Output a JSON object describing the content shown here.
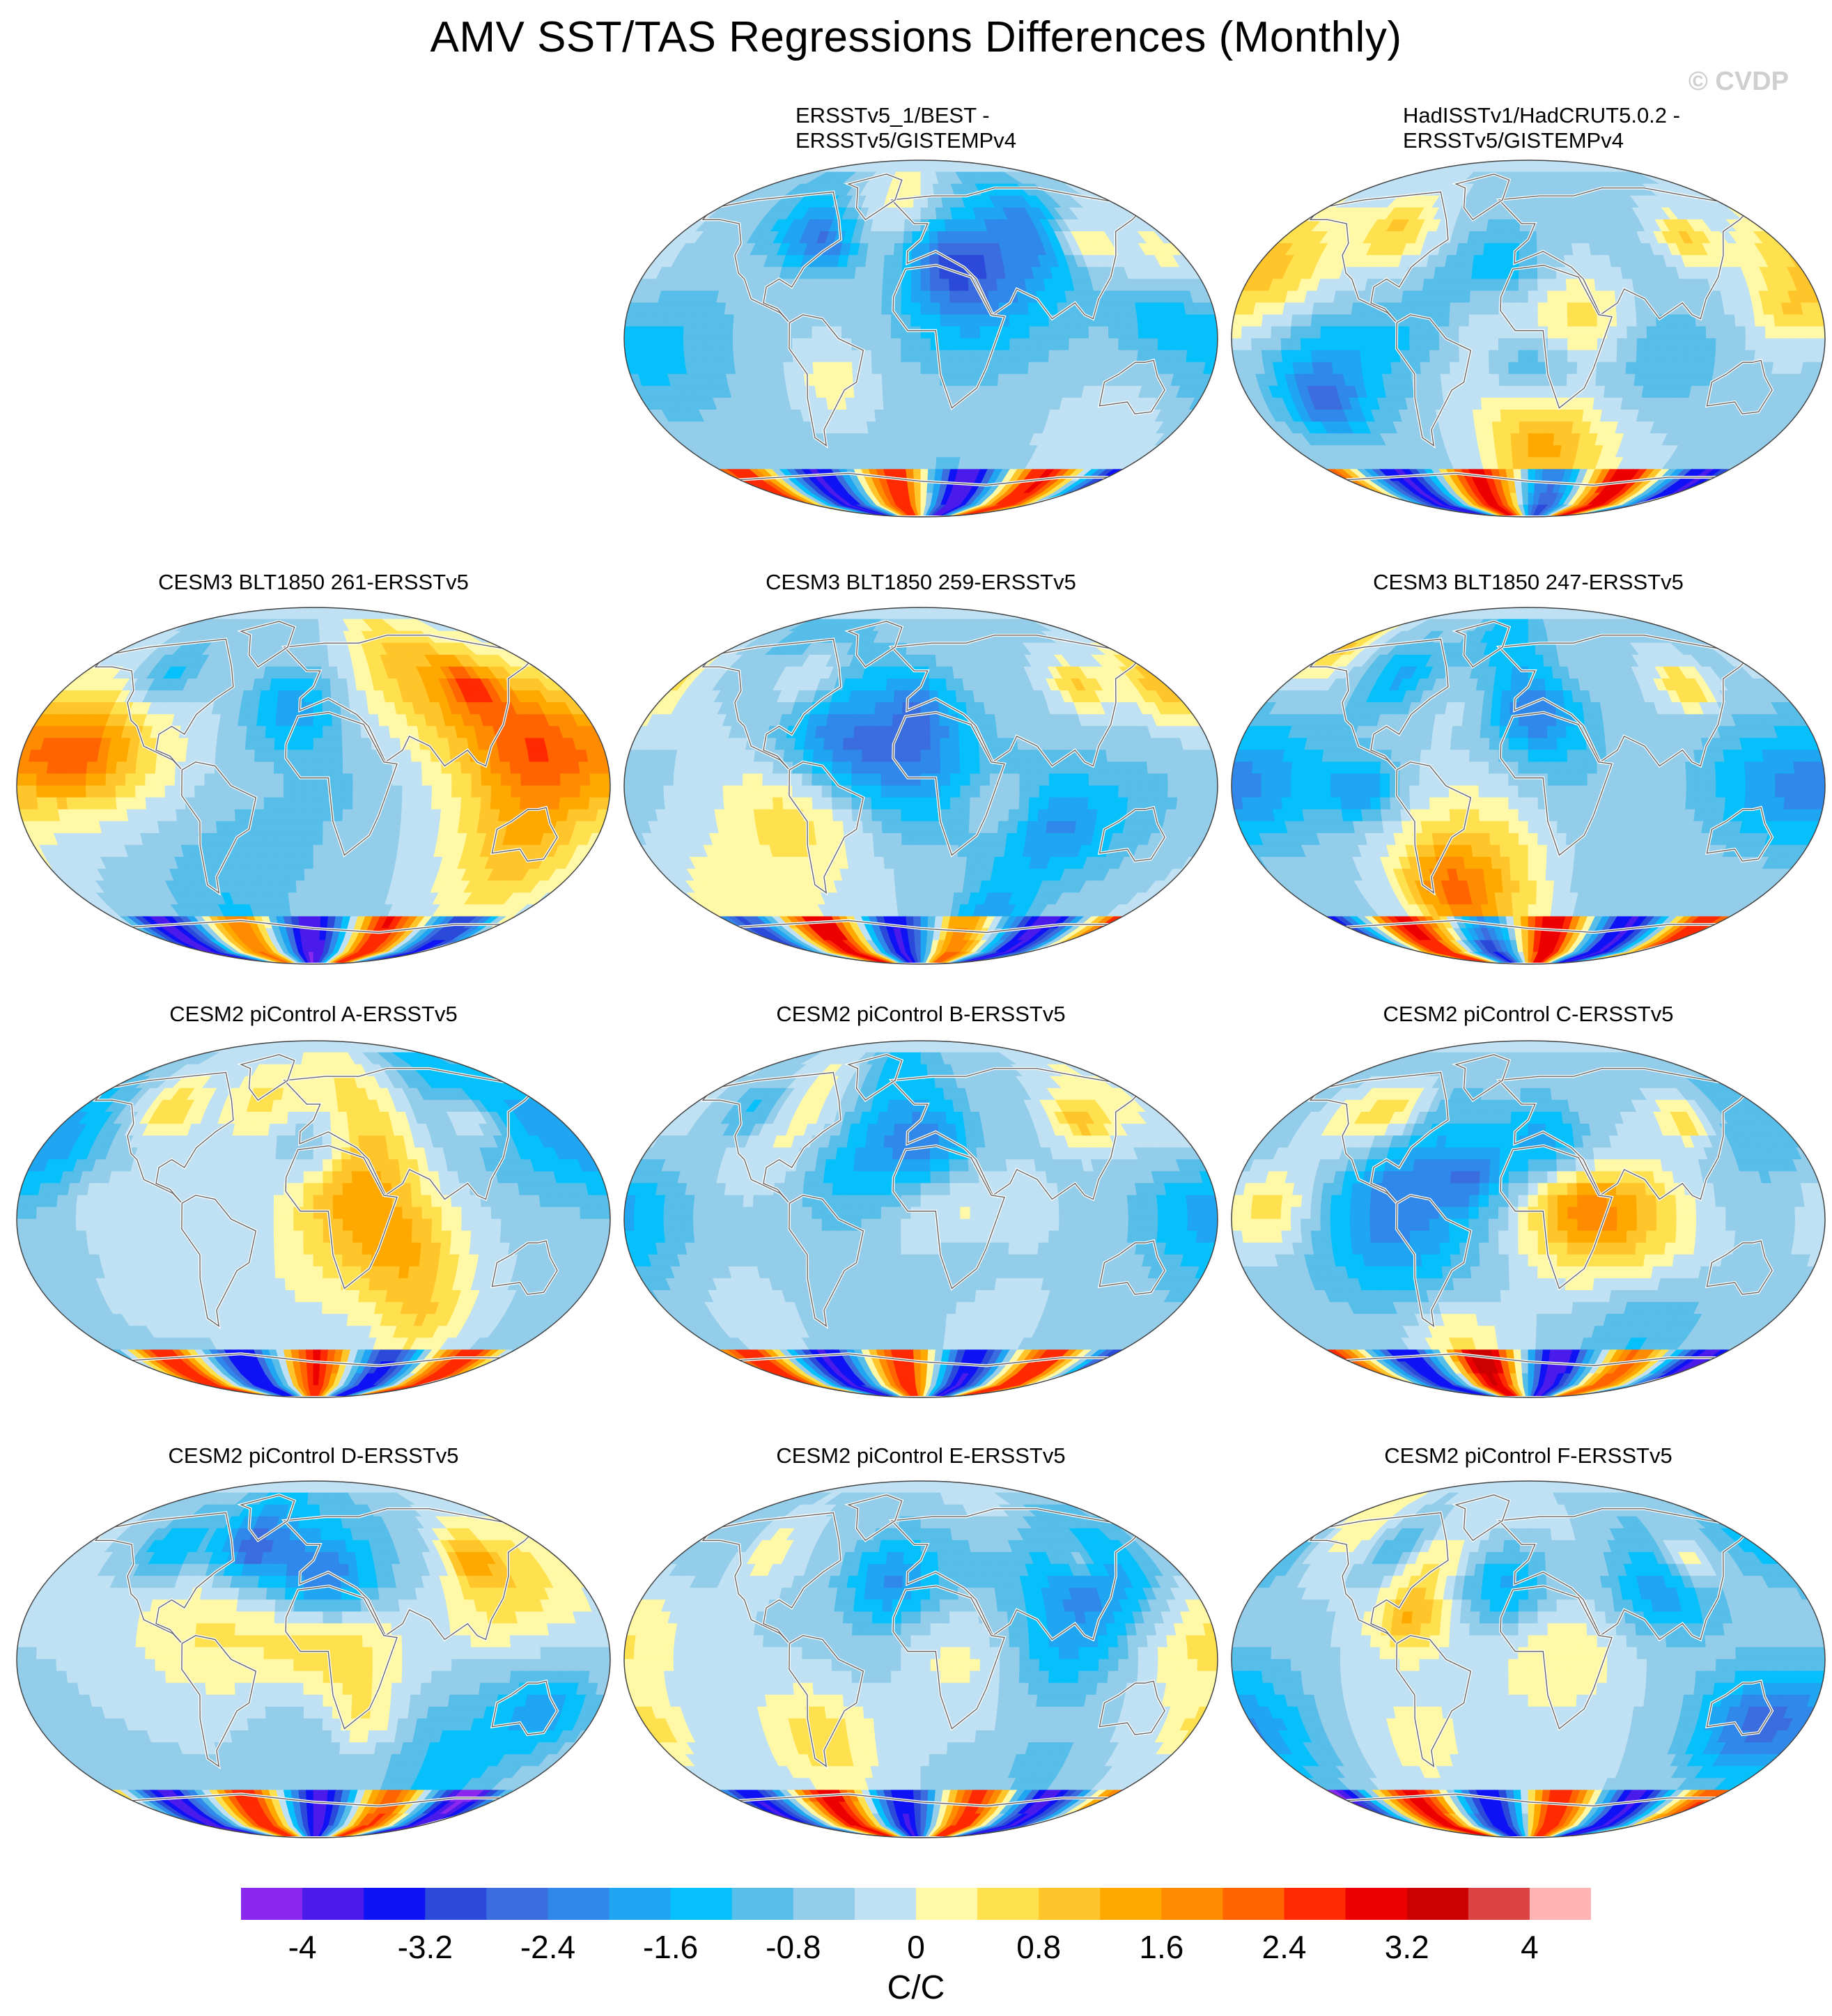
{
  "title": "AMV SST/TAS Regressions Differences (Monthly)",
  "watermark": "© CVDP",
  "colors": {
    "levels": [
      "#8a28ee",
      "#4a1bea",
      "#0f12f5",
      "#2b4ad9",
      "#3b6ddf",
      "#2f88ea",
      "#1fa5f2",
      "#05c0fb",
      "#57bde9",
      "#93cdea",
      "#bfe1f3",
      "#fff9a7",
      "#ffe14f",
      "#ffc52a",
      "#ffa800",
      "#ff8c00",
      "#ff6400",
      "#ff2a00",
      "#ec0000",
      "#cc0000",
      "#dc4443",
      "#ffb4b4"
    ],
    "continent_outline": "#ffffff",
    "coast_line": "#666666"
  },
  "colorbar": {
    "ticks": [
      "-4",
      "-3.2",
      "-2.4",
      "-1.6",
      "-0.8",
      "0",
      "0.8",
      "1.6",
      "2.4",
      "3.2",
      "4"
    ],
    "unit": "C/C"
  },
  "panels": [
    {
      "title_lines": [
        "ERSSTv5_1/BEST -",
        "ERSSTv5/GISTEMPv4"
      ],
      "variant": 0
    },
    {
      "title_lines": [
        "HadISSTv1/HadCRUT5.0.2 -",
        "ERSSTv5/GISTEMPv4"
      ],
      "variant": 1
    },
    {
      "title_lines": [
        "CESM3 BLT1850 261-ERSSTv5"
      ],
      "variant": 2
    },
    {
      "title_lines": [
        "CESM3 BLT1850 259-ERSSTv5"
      ],
      "variant": 3
    },
    {
      "title_lines": [
        "CESM3 BLT1850 247-ERSSTv5"
      ],
      "variant": 4
    },
    {
      "title_lines": [
        "CESM2 piControl A-ERSSTv5"
      ],
      "variant": 5
    },
    {
      "title_lines": [
        "CESM2 piControl B-ERSSTv5"
      ],
      "variant": 6
    },
    {
      "title_lines": [
        "CESM2 piControl C-ERSSTv5"
      ],
      "variant": 7
    },
    {
      "title_lines": [
        "CESM2 piControl D-ERSSTv5"
      ],
      "variant": 8
    },
    {
      "title_lines": [
        "CESM2 piControl E-ERSSTv5"
      ],
      "variant": 9
    },
    {
      "title_lines": [
        "CESM2 piControl F-ERSSTv5"
      ],
      "variant": 10
    }
  ]
}
